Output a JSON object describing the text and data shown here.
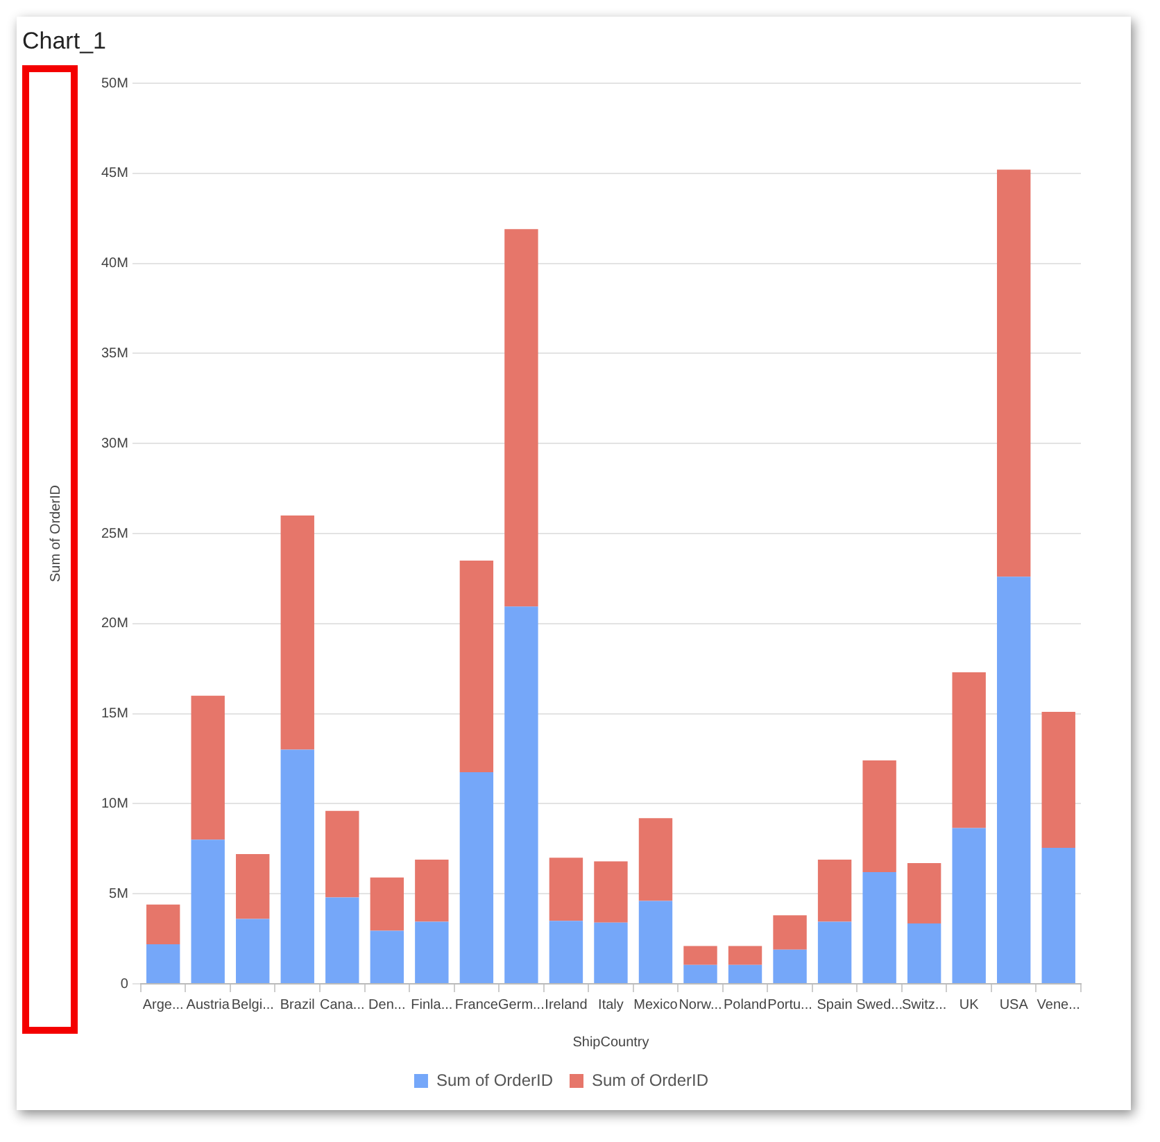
{
  "chart_data": {
    "type": "bar",
    "title": "Chart_1",
    "xlabel": "ShipCountry",
    "ylabel": "Sum of OrderID",
    "categories": [
      "Arge...",
      "Austria",
      "Belgi...",
      "Brazil",
      "Cana...",
      "Den...",
      "Finla...",
      "France",
      "Germ...",
      "Ireland",
      "Italy",
      "Mexico",
      "Norw...",
      "Poland",
      "Portu...",
      "Spain",
      "Swed...",
      "Switz...",
      "UK",
      "USA",
      "Vene..."
    ],
    "series": [
      {
        "name": "Sum of OrderID",
        "color": "#75a7f9",
        "values": [
          2200000,
          8000000,
          3600000,
          13000000,
          4800000,
          2950000,
          3450000,
          11750000,
          20950000,
          3500000,
          3400000,
          4600000,
          1050000,
          1050000,
          1900000,
          3450000,
          6200000,
          3350000,
          8650000,
          22600000,
          7550000
        ]
      },
      {
        "name": "Sum of OrderID",
        "color": "#e6766a",
        "values": [
          2200000,
          8000000,
          3600000,
          13000000,
          4800000,
          2950000,
          3450000,
          11750000,
          20950000,
          3500000,
          3400000,
          4600000,
          1050000,
          1050000,
          1900000,
          3450000,
          6200000,
          3350000,
          8650000,
          22600000,
          7550000
        ]
      }
    ],
    "stacked": true,
    "ylim": [
      0,
      50000000
    ],
    "yticks": [
      {
        "value": 0,
        "label": "0"
      },
      {
        "value": 5000000,
        "label": "5M"
      },
      {
        "value": 10000000,
        "label": "10M"
      },
      {
        "value": 15000000,
        "label": "15M"
      },
      {
        "value": 20000000,
        "label": "20M"
      },
      {
        "value": 25000000,
        "label": "25M"
      },
      {
        "value": 30000000,
        "label": "30M"
      },
      {
        "value": 35000000,
        "label": "35M"
      },
      {
        "value": 40000000,
        "label": "40M"
      },
      {
        "value": 45000000,
        "label": "45M"
      },
      {
        "value": 50000000,
        "label": "50M"
      }
    ],
    "grid": "y",
    "legend": "bottom"
  }
}
